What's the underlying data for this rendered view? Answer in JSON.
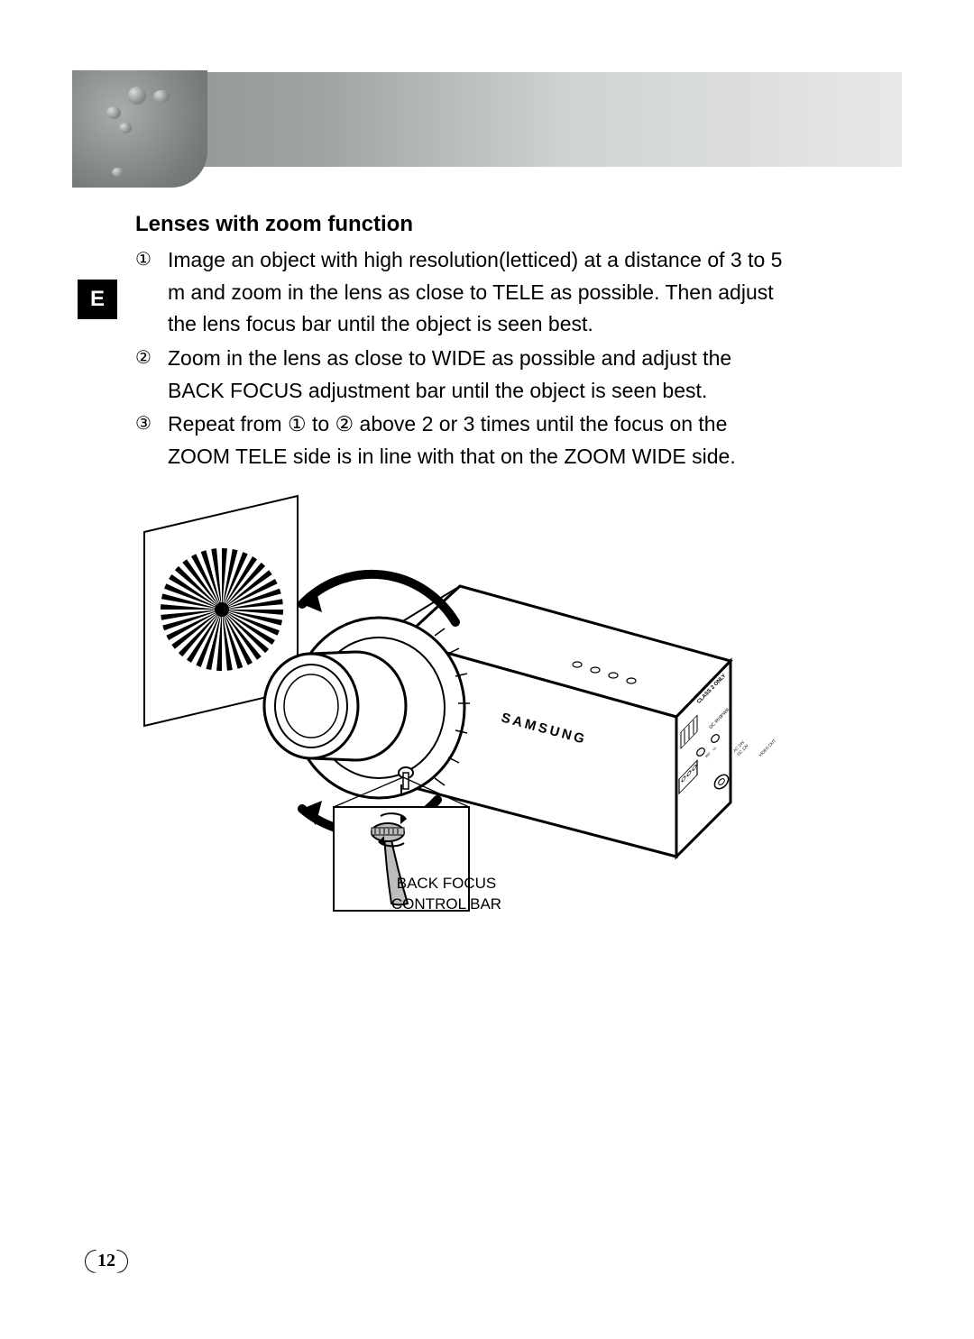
{
  "lang_tab": "E",
  "heading": "Lenses with zoom function",
  "steps": [
    {
      "num": "①",
      "text": " Image an object with high resolution(letticed) at a distance of 3 to 5 m and zoom in the lens as close to TELE as possible. Then adjust the lens focus bar until the object is seen best."
    },
    {
      "num": "②",
      "text": "Zoom in the lens as close to WIDE as possible and adjust the BACK FOCUS adjustment bar until the object is seen best."
    },
    {
      "num": "③",
      "text": "Repeat from ① to ② above 2 or 3 times until the focus on the ZOOM TELE side is in line with that on the ZOOM WIDE side."
    }
  ],
  "figure": {
    "caption_line1": "BACK FOCUS",
    "caption_line2": "CONTROL BAR",
    "camera_brand": "SAMSUNG",
    "rear_labels": {
      "class": "CLASS 2 ONLY",
      "video": "VIDEO OUT",
      "pwr": "PWR",
      "dc_iris": "DC IRIS",
      "ll": "LL",
      "int": "INT",
      "ac": "AC 24V",
      "dc": "DC 12V"
    },
    "styling": {
      "target_spokes": 36,
      "target_fill": "#000000",
      "camera_stroke": "#000000",
      "camera_fill": "#ffffff",
      "stroke_width_thick": 3,
      "stroke_width_thin": 1.2
    }
  },
  "page_number": "12",
  "colors": {
    "bg": "#ffffff",
    "text": "#000000",
    "banner_grad_start": "#8a8f8f",
    "banner_grad_end": "#e8e8e8"
  },
  "typography": {
    "heading_size_pt": 18,
    "body_size_pt": 17,
    "caption_size_pt": 12,
    "font_family": "Arial"
  }
}
